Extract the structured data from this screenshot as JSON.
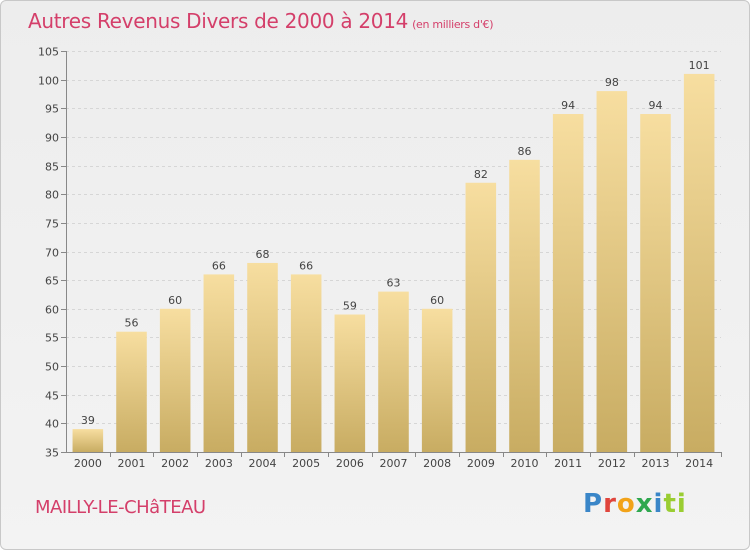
{
  "header": {
    "title": "Autres Revenus Divers de 2000 à 2014",
    "unit": "(en milliers d'€)"
  },
  "footer": {
    "town": "MAILLY-LE-CHâTEAU",
    "logo": [
      "P",
      "r",
      "o",
      "x",
      "i",
      "ti"
    ]
  },
  "colors": {
    "bar_top": "#f7dea0",
    "bar_bottom": "#c8ac62",
    "title": "#d43f6a"
  },
  "chart_data": {
    "type": "bar",
    "title": "Autres Revenus Divers de 2000 à 2014",
    "categories": [
      "2000",
      "2001",
      "2002",
      "2003",
      "2004",
      "2005",
      "2006",
      "2007",
      "2008",
      "2009",
      "2010",
      "2011",
      "2012",
      "2013",
      "2014"
    ],
    "values": [
      39,
      56,
      60,
      66,
      68,
      66,
      59,
      63,
      60,
      82,
      86,
      94,
      98,
      94,
      101
    ],
    "ylim": [
      35,
      105
    ],
    "yticks": [
      35,
      40,
      45,
      50,
      55,
      60,
      65,
      70,
      75,
      80,
      85,
      90,
      95,
      100,
      105
    ],
    "grid": true,
    "data_labels": true
  }
}
